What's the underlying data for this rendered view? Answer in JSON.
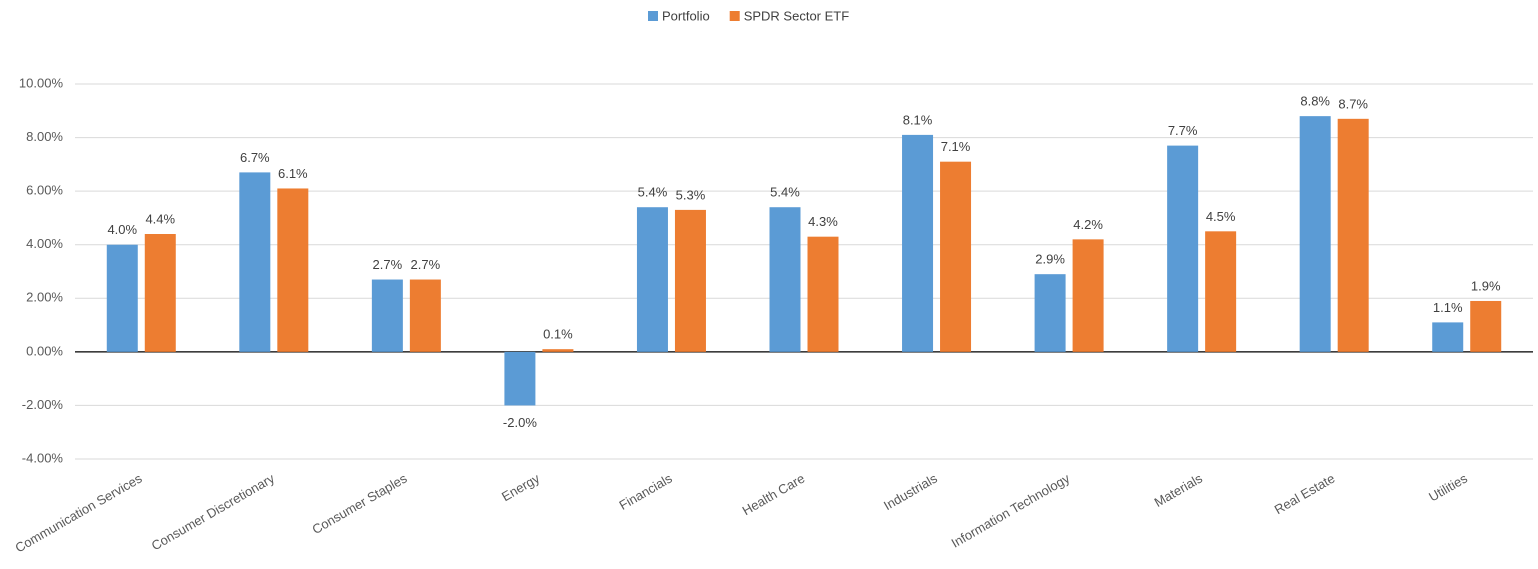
{
  "chart_data": {
    "type": "bar",
    "categories": [
      "Communication Services",
      "Consumer Discretionary",
      "Consumer Staples",
      "Energy",
      "Financials",
      "Health Care",
      "Industrials",
      "Information Technology",
      "Materials",
      "Real Estate",
      "Utilities"
    ],
    "series": [
      {
        "name": "Portfolio",
        "color": "#5b9bd5",
        "values": [
          4.0,
          6.7,
          2.7,
          -2.0,
          5.4,
          5.4,
          8.1,
          2.9,
          7.7,
          8.8,
          1.1
        ],
        "value_labels": [
          "4.0%",
          "6.7%",
          "2.7%",
          "-2.0%",
          "5.4%",
          "5.4%",
          "8.1%",
          "2.9%",
          "7.7%",
          "8.8%",
          "1.1%"
        ]
      },
      {
        "name": "SPDR Sector ETF",
        "color": "#ed7d31",
        "values": [
          4.4,
          6.1,
          2.7,
          0.1,
          5.3,
          4.3,
          7.1,
          4.2,
          4.5,
          8.7,
          1.9
        ],
        "value_labels": [
          "4.4%",
          "6.1%",
          "2.7%",
          "0.1%",
          "5.3%",
          "4.3%",
          "7.1%",
          "4.2%",
          "4.5%",
          "8.7%",
          "1.9%"
        ]
      }
    ],
    "ylim": [
      -4,
      10
    ],
    "yticks": [
      {
        "value": -4,
        "label": "-4.00%"
      },
      {
        "value": -2,
        "label": "-2.00%"
      },
      {
        "value": 0,
        "label": "0.00%"
      },
      {
        "value": 2,
        "label": "2.00%"
      },
      {
        "value": 4,
        "label": "4.00%"
      },
      {
        "value": 6,
        "label": "6.00%"
      },
      {
        "value": 8,
        "label": "8.00%"
      },
      {
        "value": 10,
        "label": "10.00%"
      }
    ],
    "grid": true,
    "legend": "top"
  }
}
